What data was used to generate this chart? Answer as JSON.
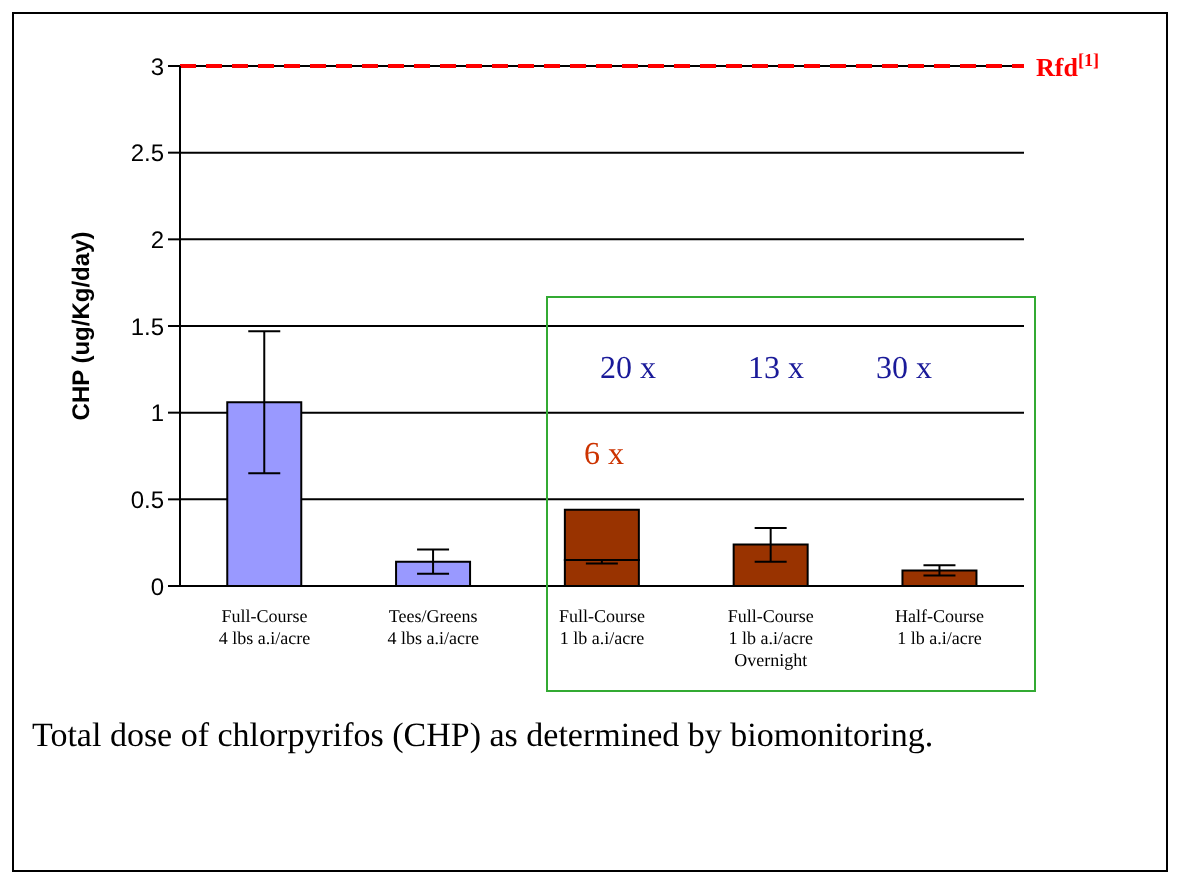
{
  "chart_data": {
    "type": "bar",
    "stacked": true,
    "ylabel": "CHP (ug/Kg/day)",
    "categories": [
      "Full-Course\n4 lbs a.i/acre",
      "Tees/Greens\n4 lbs a.i/acre",
      "Full-Course\n1 lb a.i/acre",
      "Full-Course\n1 lb a.i/acre\nOvernight",
      "Half-Course\n1 lb a.i/acre"
    ],
    "series": [
      {
        "colors": [
          "#9999ff",
          "#9999ff",
          "#993300",
          "#993300",
          "#993300"
        ],
        "values": [
          1.06,
          0.14,
          0.15,
          0.24,
          0.09
        ],
        "errors": [
          [
            0.65,
            1.47
          ],
          [
            0.07,
            0.21
          ],
          [
            0.13,
            0.15
          ],
          [
            0.14,
            0.335
          ],
          [
            0.06,
            0.12
          ]
        ]
      },
      {
        "color": "#993300",
        "values": [
          null,
          null,
          0.29,
          null,
          null
        ]
      }
    ],
    "ylim": [
      0,
      3
    ],
    "yticks": [
      0,
      0.5,
      1,
      1.5,
      2,
      2.5,
      3
    ],
    "grid": "y",
    "ref_lines": [
      {
        "axis": "y",
        "value": 3,
        "label": "Rfd$^{[1]}$",
        "color": "#ff0000",
        "line_style": "dashed"
      }
    ],
    "annotations": [
      "20 x",
      "13 x",
      "30 x",
      "6 x",
      "Total dose of chlorpyrifos (CHP) as determined by biomonitoring."
    ]
  }
}
